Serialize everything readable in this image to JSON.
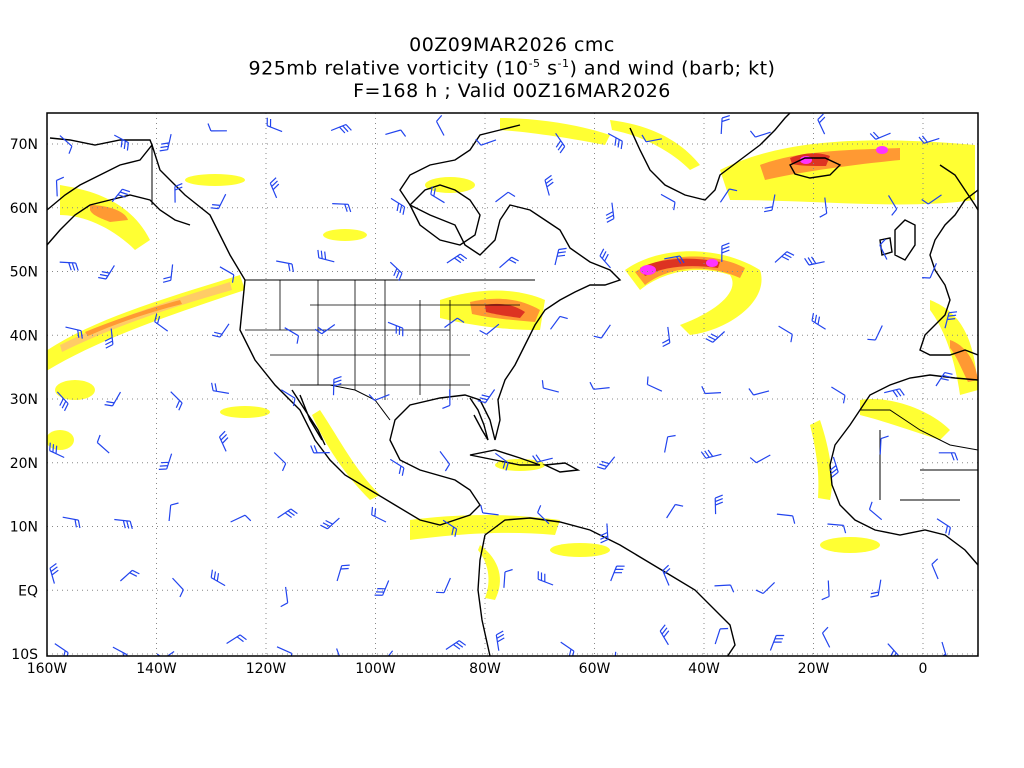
{
  "header": {
    "line1": "00Z09MAR2026 cmc",
    "line2_pre": "925mb relative vorticity (10",
    "line2_exp1": "-5",
    "line2_mid": " s",
    "line2_exp2": "-1",
    "line2_post": ") and wind (barb; kt)",
    "line3": "F=168 h ; Valid 00Z16MAR2026"
  },
  "axes": {
    "lat_labels": [
      "70N",
      "60N",
      "50N",
      "40N",
      "30N",
      "20N",
      "10N",
      "EQ",
      "10S"
    ],
    "lon_labels": [
      "160W",
      "140W",
      "120W",
      "100W",
      "80W",
      "60W",
      "40W",
      "20W",
      "0"
    ]
  },
  "colors": {
    "vort_light": "#ffff33",
    "vort_mid": "#ffdd66",
    "vort_orange": "#ff9933",
    "vort_red": "#dd3322",
    "vort_magenta": "#ff33ff",
    "barb": "#2244ee",
    "coast": "#000000",
    "grid": "#888888"
  }
}
